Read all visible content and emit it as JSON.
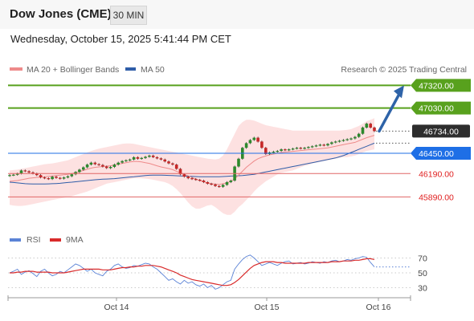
{
  "header": {
    "instrument": "Dow Jones (CME)",
    "interval": "30 MIN",
    "datetime": "Wednesday, October 15, 2025 5:41:44 PM CET"
  },
  "legend": {
    "ma20_label": "MA 20 + Bollinger Bands",
    "ma50_label": "MA 50",
    "credit": "Research © 2025 Trading Central",
    "rsi_label": "RSI",
    "ma9_label": "9MA"
  },
  "colors": {
    "green": "#58a11d",
    "blue_level": "#1e6fe6",
    "red_level": "#e06666",
    "current": "#2d2d2d",
    "ma20": "#ee8a8a",
    "ma50": "#2f5da8",
    "band_fill": "#fcdada",
    "arrow": "#2e63a8",
    "rsi": "#5b83d6",
    "ma9": "#d92b2b",
    "candle_up": "#2d8a2d",
    "candle_down": "#c62828"
  },
  "chart_data": [
    {
      "type": "candlestick",
      "title": "Dow Jones (CME)",
      "ylim": [
        45550,
        47450
      ],
      "x_ticks": [
        "Oct 14",
        "Oct 15",
        "Oct 16"
      ],
      "price_levels": [
        {
          "value": 47320.0,
          "label": "47320.00",
          "kind": "resistance"
        },
        {
          "value": 47030.0,
          "label": "47030.00",
          "kind": "resistance"
        },
        {
          "value": 46734.0,
          "label": "46734.00",
          "kind": "current"
        },
        {
          "value": 46450.0,
          "label": "46450.00",
          "kind": "pivot"
        },
        {
          "value": 46190.0,
          "label": "46190.00",
          "kind": "support"
        },
        {
          "value": 45890.0,
          "label": "45890.00",
          "kind": "support"
        }
      ],
      "arrow": {
        "from": 46734,
        "to": 47320,
        "direction": "up"
      },
      "close": [
        46170,
        46175,
        46190,
        46230,
        46220,
        46205,
        46190,
        46170,
        46140,
        46130,
        46120,
        46150,
        46135,
        46125,
        46140,
        46155,
        46180,
        46210,
        46240,
        46270,
        46305,
        46330,
        46310,
        46300,
        46280,
        46260,
        46275,
        46305,
        46330,
        46350,
        46360,
        46370,
        46400,
        46380,
        46390,
        46405,
        46420,
        46400,
        46385,
        46370,
        46345,
        46320,
        46305,
        46250,
        46180,
        46150,
        46130,
        46120,
        46110,
        46100,
        46080,
        46060,
        46050,
        46030,
        46020,
        46045,
        46080,
        46100,
        46280,
        46380,
        46520,
        46580,
        46620,
        46650,
        46600,
        46520,
        46440,
        46460,
        46470,
        46480,
        46500,
        46490,
        46500,
        46510,
        46520,
        46510,
        46520,
        46530,
        46540,
        46550,
        46560,
        46550,
        46570,
        46590,
        46600,
        46610,
        46620,
        46630,
        46640,
        46660,
        46700,
        46780,
        46830,
        46780,
        46734
      ],
      "ma20": [
        46090,
        46095,
        46100,
        46110,
        46120,
        46130,
        46135,
        46140,
        46145,
        46150,
        46155,
        46160,
        46165,
        46170,
        46175,
        46180,
        46190,
        46200,
        46215,
        46230,
        46245,
        46260,
        46270,
        46275,
        46280,
        46285,
        46290,
        46300,
        46310,
        46320,
        46330,
        46340,
        46345,
        46345,
        46340,
        46330,
        46320,
        46305,
        46290,
        46275,
        46265,
        46255,
        46240,
        46220,
        46200,
        46180,
        46160,
        46140,
        46120,
        46100,
        46085,
        46070,
        46060,
        46055,
        46050,
        46060,
        46070,
        46090,
        46120,
        46170,
        46220,
        46270,
        46310,
        46350,
        46380,
        46400,
        46415,
        46430,
        46440,
        46450,
        46460,
        46465,
        46470,
        46475,
        46480,
        46485,
        46490,
        46495,
        46500,
        46505,
        46510,
        46515,
        46520,
        46530,
        46540,
        46550,
        46560,
        46570,
        46580,
        46590,
        46610,
        46630,
        46650,
        46665,
        46680
      ],
      "bollinger_upper": [
        46230,
        46235,
        46240,
        46250,
        46260,
        46270,
        46280,
        46290,
        46300,
        46310,
        46315,
        46320,
        46330,
        46340,
        46350,
        46360,
        46380,
        46400,
        46420,
        46440,
        46460,
        46480,
        46495,
        46510,
        46520,
        46530,
        46540,
        46550,
        46560,
        46570,
        46575,
        46575,
        46570,
        46560,
        46550,
        46540,
        46530,
        46520,
        46510,
        46500,
        46490,
        46480,
        46470,
        46460,
        46450,
        46440,
        46430,
        46420,
        46410,
        46400,
        46390,
        46380,
        46375,
        46370,
        46380,
        46420,
        46500,
        46600,
        46700,
        46800,
        46850,
        46880,
        46880,
        46870,
        46850,
        46830,
        46810,
        46800,
        46790,
        46780,
        46770,
        46760,
        46750,
        46740,
        46740,
        46740,
        46740,
        46740,
        46740,
        46740,
        46740,
        46740,
        46740,
        46740,
        46740,
        46740,
        46745,
        46750,
        46760,
        46780,
        46800,
        46830,
        46860,
        46880,
        46900
      ],
      "bollinger_lower": [
        45790,
        45780,
        45775,
        45775,
        45780,
        45790,
        45800,
        45810,
        45820,
        45830,
        45840,
        45850,
        45860,
        45870,
        45880,
        45890,
        45900,
        45915,
        45930,
        45945,
        45960,
        45980,
        46000,
        46020,
        46040,
        46060,
        46070,
        46080,
        46090,
        46100,
        46110,
        46120,
        46130,
        46130,
        46130,
        46125,
        46120,
        46110,
        46100,
        46090,
        46080,
        46060,
        46030,
        45990,
        45940,
        45880,
        45820,
        45770,
        45740,
        45740,
        45760,
        45780,
        45790,
        45760,
        45720,
        45680,
        45660,
        45660,
        45700,
        45760,
        45800,
        45850,
        45900,
        45960,
        46010,
        46050,
        46090,
        46120,
        46150,
        46180,
        46200,
        46210,
        46220,
        46230,
        46250,
        46270,
        46290,
        46300,
        46320,
        46330,
        46340,
        46350,
        46360,
        46370,
        46380,
        46390,
        46400,
        46400,
        46410,
        46420,
        46440,
        46460,
        46480,
        46490,
        46500
      ],
      "ma50": [
        46080,
        46075,
        46070,
        46065,
        46060,
        46058,
        46057,
        46056,
        46056,
        46057,
        46058,
        46060,
        46062,
        46065,
        46070,
        46075,
        46080,
        46085,
        46090,
        46095,
        46100,
        46105,
        46110,
        46115,
        46118,
        46120,
        46122,
        46125,
        46130,
        46135,
        46140,
        46145,
        46150,
        46155,
        46160,
        46165,
        46168,
        46170,
        46170,
        46170,
        46168,
        46166,
        46164,
        46162,
        46160,
        46158,
        46156,
        46154,
        46152,
        46150,
        46150,
        46150,
        46150,
        46150,
        46150,
        46152,
        46155,
        46158,
        46160,
        46162,
        46165,
        46170,
        46175,
        46180,
        46190,
        46200,
        46210,
        46220,
        46230,
        46240,
        46250,
        46260,
        46270,
        46280,
        46290,
        46300,
        46310,
        46320,
        46330,
        46340,
        46350,
        46360,
        46370,
        46380,
        46390,
        46405,
        46420,
        46440,
        46460,
        46480,
        46500,
        46520,
        46540,
        46560,
        46580
      ]
    },
    {
      "type": "line",
      "title": "RSI",
      "ylim": [
        20,
        80
      ],
      "y_ticks": [
        70,
        50,
        30
      ],
      "series": [
        {
          "name": "RSI",
          "values": [
            50,
            52,
            55,
            48,
            51,
            53,
            49,
            45,
            52,
            55,
            50,
            46,
            48,
            52,
            50,
            54,
            58,
            62,
            60,
            56,
            52,
            55,
            50,
            48,
            46,
            52,
            55,
            60,
            62,
            58,
            56,
            57,
            60,
            59,
            61,
            63,
            62,
            58,
            55,
            50,
            45,
            40,
            42,
            38,
            35,
            40,
            36,
            38,
            34,
            32,
            35,
            30,
            33,
            28,
            30,
            34,
            38,
            40,
            55,
            62,
            68,
            72,
            74,
            70,
            65,
            60,
            62,
            64,
            62,
            60,
            63,
            65,
            66,
            62,
            63,
            64,
            62,
            63,
            65,
            64,
            63,
            65,
            64,
            66,
            67,
            65,
            66,
            68,
            67,
            69,
            70,
            72,
            71,
            64,
            58
          ]
        },
        {
          "name": "9MA",
          "values": [
            50,
            50,
            51,
            51,
            52,
            52,
            52,
            51,
            51,
            51,
            51,
            50,
            50,
            50,
            50,
            51,
            52,
            53,
            54,
            55,
            55,
            55,
            55,
            55,
            54,
            54,
            54,
            55,
            56,
            57,
            57,
            58,
            58,
            59,
            59,
            60,
            60,
            60,
            59,
            58,
            56,
            54,
            52,
            50,
            47,
            45,
            43,
            41,
            40,
            39,
            38,
            37,
            36,
            35,
            34,
            33,
            33,
            34,
            37,
            41,
            46,
            51,
            56,
            60,
            62,
            64,
            65,
            65,
            65,
            64,
            64,
            63,
            63,
            63,
            63,
            63,
            63,
            64,
            64,
            64,
            64,
            64,
            64,
            65,
            65,
            65,
            66,
            66,
            66,
            67,
            67,
            68,
            69,
            69,
            68
          ]
        }
      ]
    }
  ]
}
